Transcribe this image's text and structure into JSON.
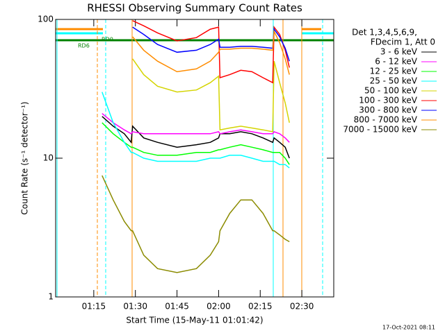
{
  "chart_data": {
    "type": "line",
    "title": "RHESSI Observing Summary Count Rates",
    "xlabel": "Start Time (15-May-11 01:01:42)",
    "ylabel": "Count Rate (s⁻¹ detector⁻¹)",
    "legend_header": [
      "Det 1,3,4,5,6,9,",
      "FDecim 1, Att 0"
    ],
    "legend": "right",
    "log_y": true,
    "annotations": [
      "RD6",
      "RD0"
    ],
    "footer": "17-Oct-2021 08:11",
    "x": [
      18,
      22,
      26,
      28.5,
      29,
      33,
      38,
      45,
      52,
      57,
      60,
      60.5,
      64,
      68,
      72,
      76,
      79.5,
      80,
      82,
      84,
      85.5
    ],
    "xlim": [
      1.25,
      101.5
    ],
    "xticks": [
      {
        "value": 15,
        "label": "01:15"
      },
      {
        "value": 30,
        "label": "01:30"
      },
      {
        "value": 45,
        "label": "01:45"
      },
      {
        "value": 60,
        "label": "02:00"
      },
      {
        "value": 75,
        "label": "02:15"
      },
      {
        "value": 90,
        "label": "02:30"
      }
    ],
    "ylim": [
      1,
      100
    ],
    "yticks": [
      1,
      10,
      100
    ],
    "series": [
      {
        "name": "3 - 6 keV",
        "color": "#000000",
        "values": [
          20,
          17,
          15,
          13,
          17,
          14,
          13,
          12,
          12.5,
          13,
          14,
          15,
          15,
          15.5,
          15,
          14,
          13,
          14,
          13,
          12,
          10
        ]
      },
      {
        "name": "6 - 12 keV",
        "color": "#ff00ff",
        "values": [
          21,
          18,
          16,
          15,
          15.5,
          15,
          15,
          15,
          15,
          15,
          15.5,
          15,
          15.5,
          16,
          15.5,
          15,
          15,
          15.5,
          15,
          14,
          13
        ]
      },
      {
        "name": "12 - 25 keV",
        "color": "#00ff00",
        "values": [
          18,
          15,
          13,
          12,
          12,
          11,
          10.5,
          10.5,
          11,
          11,
          11.5,
          11.5,
          12,
          12.5,
          12,
          11.5,
          11,
          11,
          11,
          10,
          9
        ]
      },
      {
        "name": "25 - 50 keV",
        "color": "#00ffff",
        "values": [
          30,
          18,
          13,
          11,
          11,
          10,
          9.5,
          9.5,
          9.5,
          10,
          10,
          10,
          10.5,
          10.5,
          10,
          9.5,
          9.5,
          9.5,
          9,
          9,
          8.5
        ]
      },
      {
        "name": "50 - 100 keV",
        "color": "#d4d400",
        "values": [
          null,
          null,
          null,
          null,
          52,
          40,
          33,
          30,
          31,
          35,
          39,
          16,
          16.5,
          17,
          16.5,
          16,
          15.5,
          50,
          35,
          25,
          18
        ]
      },
      {
        "name": "100 - 300 keV",
        "color": "#ff0000",
        "values": [
          null,
          null,
          null,
          null,
          98,
          90,
          80,
          70,
          74,
          85,
          88,
          38,
          40,
          43,
          42,
          38,
          35,
          88,
          78,
          60,
          45
        ]
      },
      {
        "name": "300 - 800 keV",
        "color": "#0000ff",
        "values": [
          null,
          null,
          null,
          null,
          88,
          78,
          66,
          58,
          60,
          66,
          72,
          63,
          63,
          64,
          64,
          63,
          62,
          85,
          75,
          62,
          50
        ]
      },
      {
        "name": "800 - 7000 keV",
        "color": "#ff8c00",
        "values": [
          null,
          null,
          null,
          null,
          75,
          60,
          50,
          42,
          44,
          50,
          58,
          61,
          61,
          62,
          62,
          61,
          60,
          82,
          68,
          52,
          40
        ]
      },
      {
        "name": "7000 - 15000 keV",
        "color": "#8b8b00",
        "values": [
          7.5,
          5,
          3.5,
          3,
          3,
          2,
          1.6,
          1.5,
          1.6,
          2,
          2.5,
          3,
          4,
          5,
          5,
          4,
          3,
          3,
          2.8,
          2.6,
          2.5
        ]
      }
    ]
  }
}
